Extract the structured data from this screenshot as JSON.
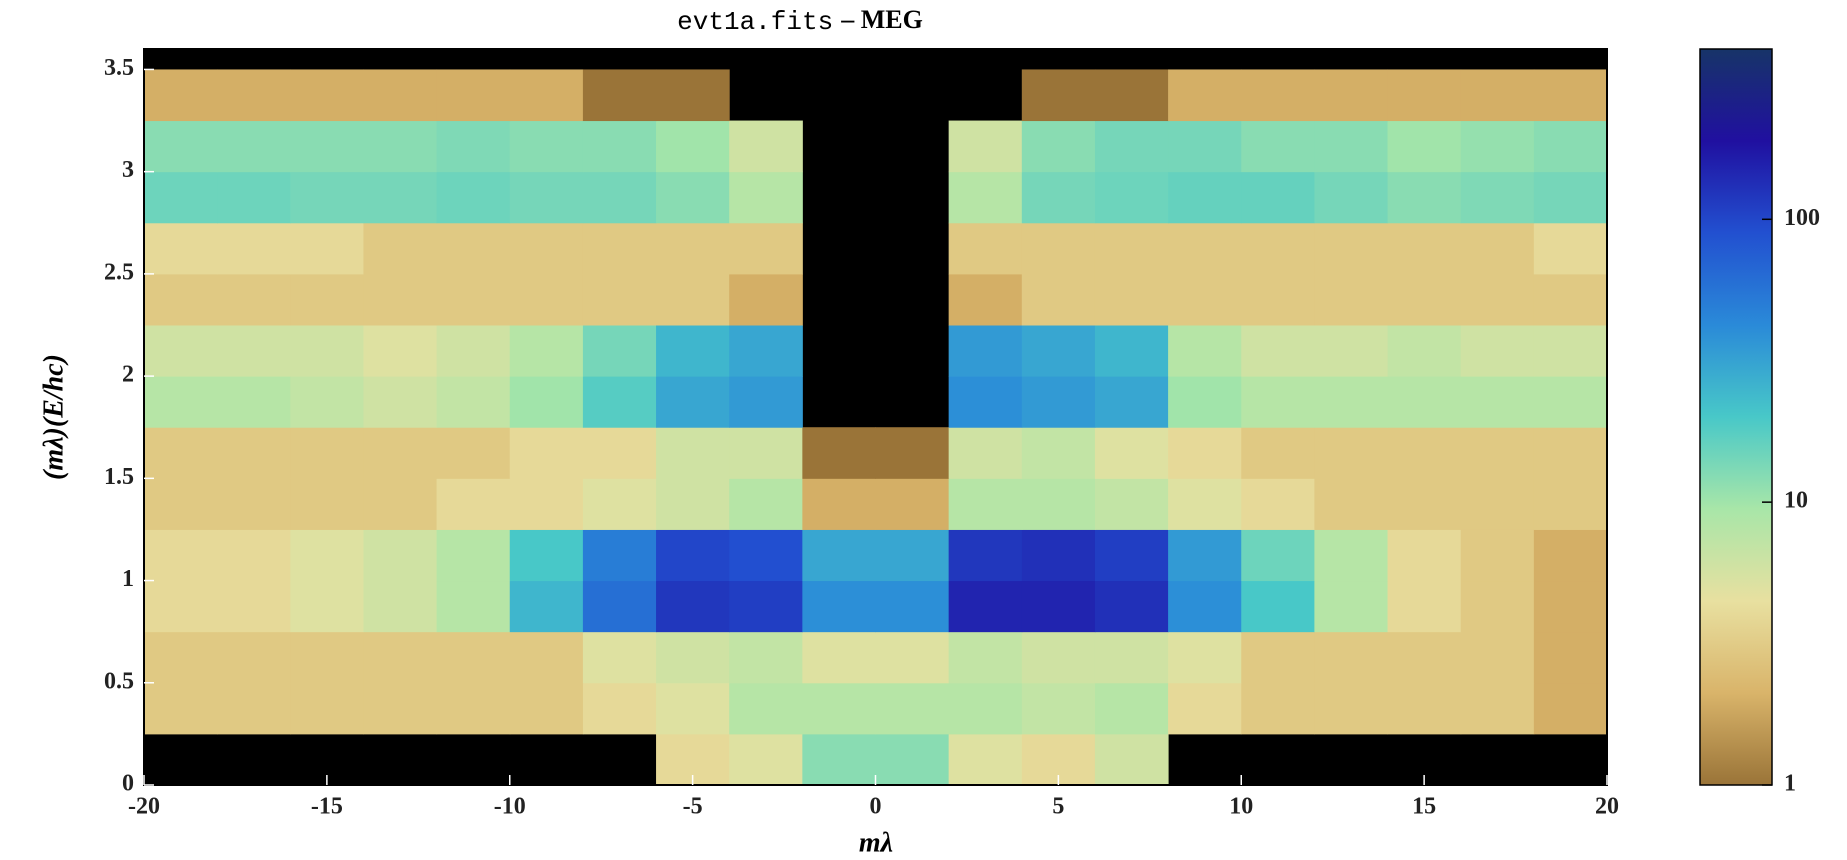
{
  "chart_data": {
    "type": "heatmap",
    "title": [
      "evt1a.fits",
      "– MEG"
    ],
    "xlabel": "mλ",
    "ylabel": "(mλ)(E/hc)",
    "xlim": [
      -20,
      20
    ],
    "ylim": [
      0,
      3.6
    ],
    "xticks": [
      -20,
      -15,
      -10,
      -5,
      0,
      5,
      10,
      15,
      20
    ],
    "yticks": [
      0,
      0.5,
      1,
      1.5,
      2,
      2.5,
      3,
      3.5
    ],
    "xbins": [
      -20,
      -18,
      -16,
      -14,
      -12,
      -10,
      -8,
      -6,
      -4,
      -2,
      0,
      2,
      4,
      6,
      8,
      10,
      12,
      14,
      16,
      18,
      20
    ],
    "ybins": [
      0,
      0.25,
      0.5,
      0.75,
      1,
      1.25,
      1.5,
      1.75,
      2,
      2.25,
      2.5,
      2.75,
      3,
      3.25,
      3.5
    ],
    "z": [
      [
        0,
        0,
        0,
        0,
        0,
        0,
        0,
        4,
        5,
        12,
        12,
        5,
        4,
        6,
        0,
        0,
        0,
        0,
        0,
        0
      ],
      [
        3,
        3,
        3,
        3,
        3,
        3,
        4,
        5,
        8,
        8,
        8,
        8,
        7,
        8,
        4,
        3,
        3,
        3,
        3,
        2
      ],
      [
        3,
        3,
        3,
        3,
        3,
        3,
        5,
        6,
        7,
        5,
        5,
        7,
        6,
        6,
        5,
        3,
        3,
        3,
        3,
        2
      ],
      [
        4,
        4,
        5,
        6,
        8,
        25,
        60,
        120,
        110,
        40,
        40,
        150,
        150,
        130,
        40,
        20,
        8,
        4,
        3,
        2
      ],
      [
        4,
        4,
        5,
        6,
        8,
        20,
        50,
        100,
        90,
        30,
        30,
        120,
        130,
        110,
        35,
        15,
        8,
        4,
        3,
        2
      ],
      [
        3,
        3,
        3,
        3,
        4,
        4,
        5,
        6,
        8,
        2,
        2,
        8,
        8,
        7,
        5,
        4,
        3,
        3,
        3,
        3
      ],
      [
        3,
        3,
        3,
        3,
        3,
        4,
        4,
        6,
        6,
        1,
        1,
        6,
        7,
        5,
        4,
        3,
        3,
        3,
        3,
        3
      ],
      [
        8,
        8,
        7,
        6,
        7,
        10,
        18,
        30,
        35,
        0,
        0,
        40,
        35,
        30,
        10,
        8,
        8,
        8,
        8,
        8
      ],
      [
        6,
        6,
        6,
        5,
        6,
        8,
        14,
        25,
        30,
        0,
        0,
        35,
        30,
        25,
        8,
        6,
        6,
        7,
        6,
        6
      ],
      [
        3,
        3,
        3,
        3,
        3,
        3,
        3,
        3,
        2,
        0,
        0,
        2,
        3,
        3,
        3,
        3,
        3,
        3,
        3,
        3
      ],
      [
        4,
        4,
        4,
        3,
        3,
        3,
        3,
        3,
        3,
        0,
        0,
        3,
        3,
        3,
        3,
        3,
        3,
        3,
        3,
        4
      ],
      [
        15,
        15,
        14,
        14,
        15,
        14,
        14,
        12,
        8,
        0,
        0,
        8,
        14,
        15,
        16,
        16,
        14,
        12,
        13,
        14
      ],
      [
        12,
        12,
        12,
        12,
        13,
        12,
        12,
        10,
        6,
        0,
        0,
        6,
        12,
        14,
        14,
        12,
        12,
        10,
        11,
        12
      ],
      [
        2,
        2,
        2,
        2,
        2,
        2,
        1,
        1,
        0,
        0,
        0,
        0,
        1,
        1,
        2,
        2,
        2,
        2,
        2,
        2
      ]
    ],
    "zlim": [
      1,
      400
    ],
    "zticks": [
      1,
      10,
      100
    ],
    "log_color_scale": true,
    "background": "#000000",
    "colorscale": [
      "#9a7438",
      "#d9b46a",
      "#e8e0a0",
      "#a8e6a8",
      "#48c8c8",
      "#2a8ad8",
      "#2250d0",
      "#2010a0",
      "#173468"
    ]
  }
}
